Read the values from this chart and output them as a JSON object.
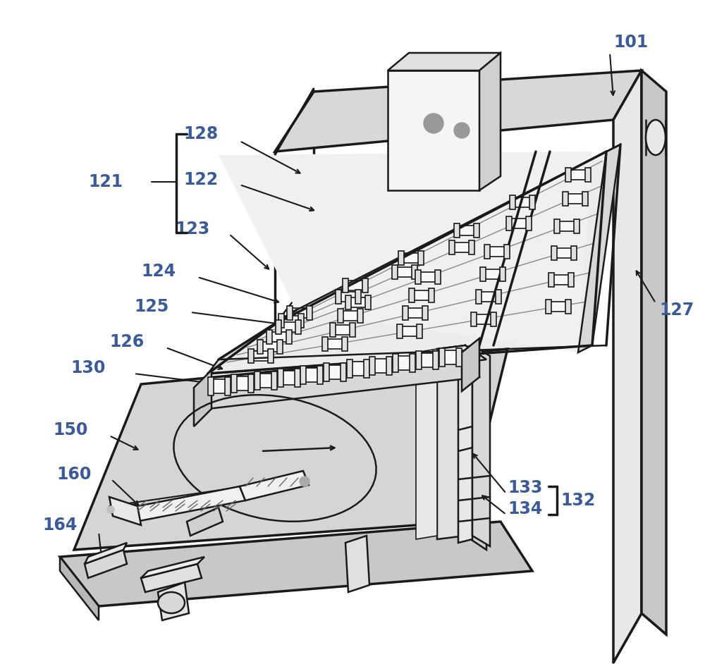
{
  "bg_color": "#ffffff",
  "lc": "#1a1a1a",
  "label_color": "#3a5a9a",
  "figsize": [
    10.0,
    9.42
  ],
  "dpi": 100
}
